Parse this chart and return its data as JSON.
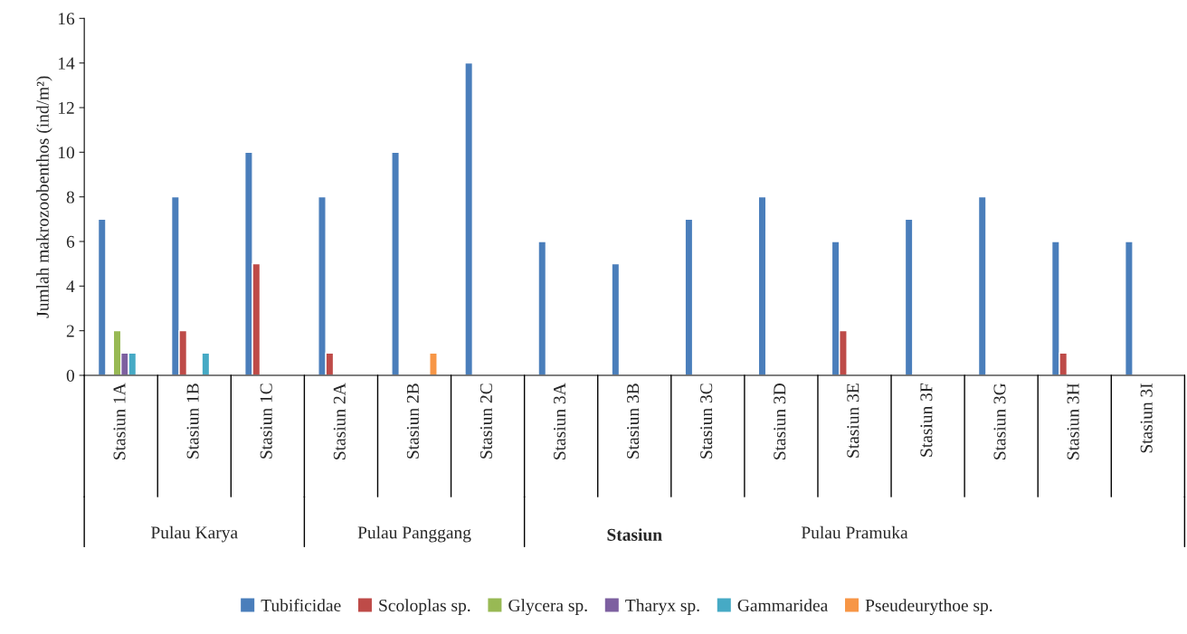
{
  "chart_data": {
    "type": "bar",
    "categories": [
      "Stasiun 1A",
      "Stasiun 1B",
      "Stasiun 1C",
      "Stasiun 2A",
      "Stasiun 2B",
      "Stasiun 2C",
      "Stasiun 3A",
      "Stasiun 3B",
      "Stasiun 3C",
      "Stasiun 3D",
      "Stasiun 3E",
      "Stasiun 3F",
      "Stasiun 3G",
      "Stasiun 3H",
      "Stasiun 3I"
    ],
    "series": [
      {
        "name": "Tubificidae",
        "color": "#4a7ebb",
        "values": [
          7,
          8,
          10,
          8,
          10,
          14,
          6,
          5,
          7,
          8,
          6,
          7,
          8,
          6,
          6
        ]
      },
      {
        "name": "Scoloplas sp.",
        "color": "#be4b48",
        "values": [
          null,
          2,
          5,
          1,
          null,
          null,
          null,
          null,
          null,
          null,
          2,
          null,
          null,
          1,
          null
        ]
      },
      {
        "name": "Glycera sp.",
        "color": "#98b954",
        "values": [
          2,
          null,
          null,
          null,
          null,
          null,
          null,
          null,
          null,
          null,
          null,
          null,
          null,
          null,
          null
        ]
      },
      {
        "name": "Tharyx sp.",
        "color": "#7d60a0",
        "values": [
          1,
          null,
          null,
          null,
          null,
          null,
          null,
          null,
          null,
          null,
          null,
          null,
          null,
          null,
          null
        ]
      },
      {
        "name": "Gammaridea",
        "color": "#46aac5",
        "values": [
          1,
          1,
          null,
          null,
          null,
          null,
          null,
          null,
          null,
          null,
          null,
          null,
          null,
          null,
          null
        ]
      },
      {
        "name": "Pseudeurythoe sp.",
        "color": "#f79646",
        "values": [
          null,
          null,
          null,
          null,
          1,
          null,
          null,
          null,
          null,
          null,
          null,
          null,
          null,
          null,
          null
        ]
      }
    ],
    "annotations": [
      "Pulau Karya",
      "Pulau Panggang",
      "Pulau Pramuka"
    ],
    "xlabel": "Stasiun",
    "ylabel": "Jumlah makrozoobenthos (ind/m²)",
    "ylim": [
      0,
      16
    ],
    "yticks": [
      0,
      2,
      4,
      6,
      8,
      10,
      12,
      14,
      16
    ],
    "grid": false,
    "legend": "bottom"
  }
}
